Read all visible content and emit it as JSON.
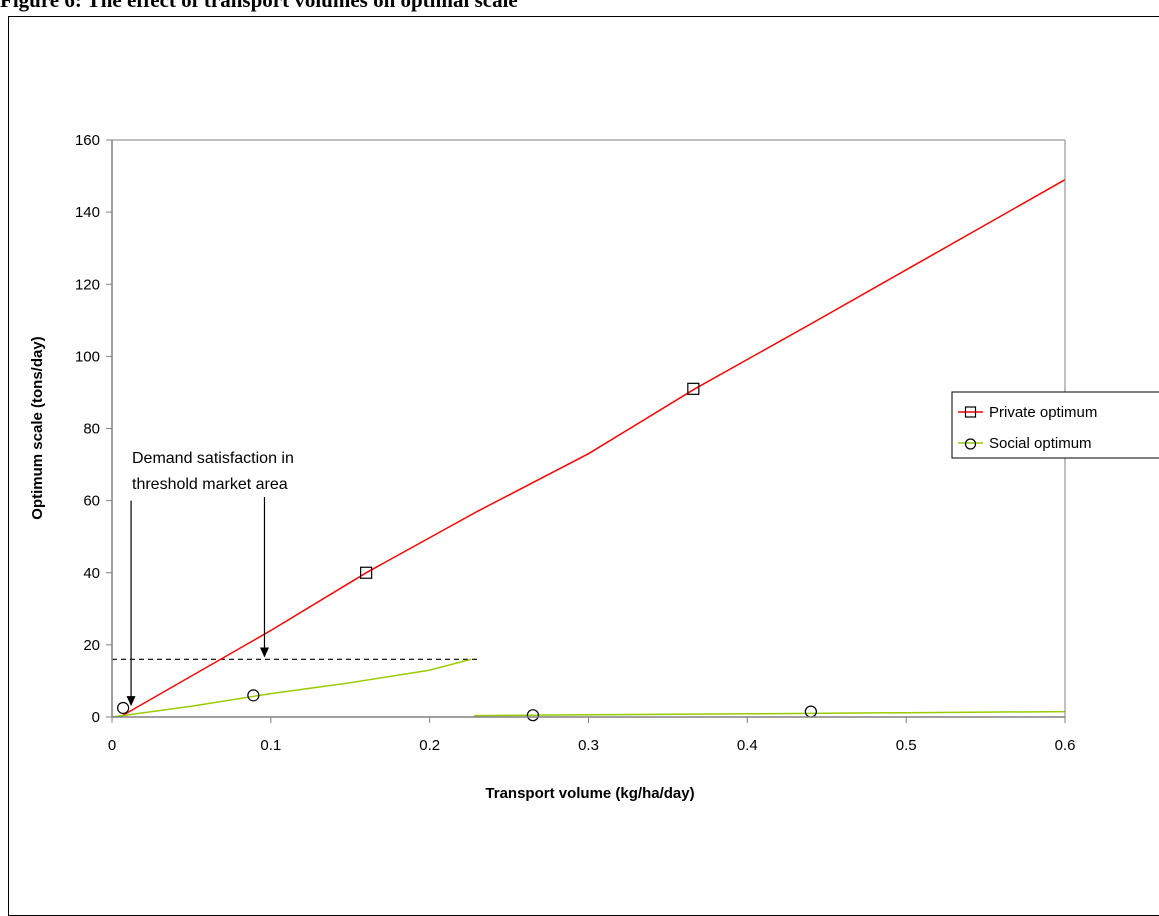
{
  "figure_title": "Figure 6: The effect of transport volumes on optimal scale",
  "chart_data": {
    "type": "line",
    "xlabel": "Transport volume (kg/ha/day)",
    "ylabel": "Optimum scale (tons/day)",
    "xlim": [
      0,
      0.6
    ],
    "ylim": [
      0,
      160
    ],
    "xticks": [
      "0",
      "0.1",
      "0.2",
      "0.3",
      "0.4",
      "0.5",
      "0.6"
    ],
    "yticks": [
      "0",
      "20",
      "40",
      "60",
      "80",
      "100",
      "120",
      "140",
      "160"
    ],
    "grid": false,
    "legend_position": "right",
    "series": [
      {
        "name": "Private optimum",
        "color": "#ff0000",
        "marker": "square",
        "line": [
          [
            0.005,
            0
          ],
          [
            0.1,
            24
          ],
          [
            0.16,
            40
          ],
          [
            0.23,
            57
          ],
          [
            0.3,
            73
          ],
          [
            0.367,
            91
          ],
          [
            0.44,
            109
          ],
          [
            0.5,
            124
          ],
          [
            0.6,
            149
          ]
        ],
        "markers": [
          [
            0.16,
            40
          ],
          [
            0.366,
            91
          ]
        ]
      },
      {
        "name": "Social optimum",
        "color": "#99cc00",
        "marker": "circle",
        "line_segments": [
          [
            [
              0,
              0
            ],
            [
              0.05,
              3
            ],
            [
              0.1,
              6.5
            ],
            [
              0.15,
              9.5
            ],
            [
              0.2,
              13
            ],
            [
              0.226,
              16
            ]
          ],
          [
            [
              0.228,
              0.4
            ],
            [
              0.3,
              0.6
            ],
            [
              0.4,
              0.9
            ],
            [
              0.5,
              1.2
            ],
            [
              0.6,
              1.5
            ]
          ]
        ],
        "markers": [
          [
            0.007,
            2.5
          ],
          [
            0.089,
            6
          ],
          [
            0.265,
            0.5
          ],
          [
            0.44,
            1.5
          ]
        ]
      }
    ],
    "reference_line": {
      "style": "dashed",
      "y": 16,
      "x_from": 0,
      "x_to": 0.23
    },
    "annotation": {
      "lines": [
        "Demand satisfaction in",
        "threshold market area"
      ],
      "arrows": [
        {
          "from": [
            0.012,
            60
          ],
          "to": [
            0.012,
            3
          ]
        },
        {
          "from": [
            0.096,
            61
          ],
          "to": [
            0.096,
            16.5
          ]
        }
      ]
    }
  }
}
